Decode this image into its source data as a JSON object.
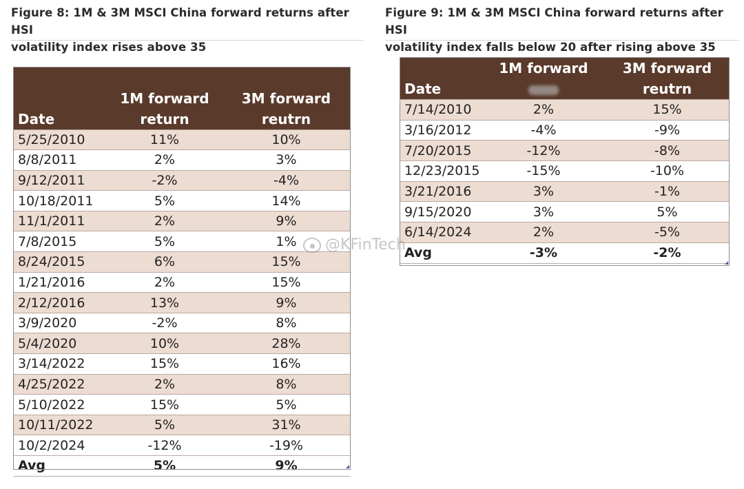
{
  "figure8": {
    "title_line1": "Figure 8: 1M & 3M MSCI China forward returns after HSI",
    "title_line2": "volatility index rises above 35",
    "headers": {
      "date": "Date",
      "col1_line1": "1M forward",
      "col1_line2": "return",
      "col2_line1": "3M forward",
      "col2_line2": "reutrn"
    },
    "rows": [
      {
        "date": "5/25/2010",
        "m1": "11%",
        "m3": "10%"
      },
      {
        "date": "8/8/2011",
        "m1": "2%",
        "m3": "3%"
      },
      {
        "date": "9/12/2011",
        "m1": "-2%",
        "m3": "-4%"
      },
      {
        "date": "10/18/2011",
        "m1": "5%",
        "m3": "14%"
      },
      {
        "date": "11/1/2011",
        "m1": "2%",
        "m3": "9%"
      },
      {
        "date": "7/8/2015",
        "m1": "5%",
        "m3": "1%"
      },
      {
        "date": "8/24/2015",
        "m1": "6%",
        "m3": "15%"
      },
      {
        "date": "1/21/2016",
        "m1": "2%",
        "m3": "15%"
      },
      {
        "date": "2/12/2016",
        "m1": "13%",
        "m3": "9%"
      },
      {
        "date": "3/9/2020",
        "m1": "-2%",
        "m3": "8%"
      },
      {
        "date": "5/4/2020",
        "m1": "10%",
        "m3": "28%"
      },
      {
        "date": "3/14/2022",
        "m1": "15%",
        "m3": "16%"
      },
      {
        "date": "4/25/2022",
        "m1": "2%",
        "m3": "8%"
      },
      {
        "date": "5/10/2022",
        "m1": "15%",
        "m3": "5%"
      },
      {
        "date": "10/11/2022",
        "m1": "5%",
        "m3": "31%"
      },
      {
        "date": "10/2/2024",
        "m1": "-12%",
        "m3": "-19%"
      }
    ],
    "avg": {
      "label": "Avg",
      "m1": "5%",
      "m3": "9%"
    }
  },
  "figure9": {
    "title_line1": "Figure 9: 1M & 3M MSCI China forward returns after HSI",
    "title_line2": "volatility index falls below 20 after rising above 35",
    "headers": {
      "date": "Date",
      "col1_line1": "1M forward",
      "col1_line2": "",
      "col2_line1": "3M forward",
      "col2_line2": "reutrn"
    },
    "rows": [
      {
        "date": "7/14/2010",
        "m1": "2%",
        "m3": "15%"
      },
      {
        "date": "3/16/2012",
        "m1": "-4%",
        "m3": "-9%"
      },
      {
        "date": "7/20/2015",
        "m1": "-12%",
        "m3": "-8%"
      },
      {
        "date": "12/23/2015",
        "m1": "-15%",
        "m3": "-10%"
      },
      {
        "date": "3/21/2016",
        "m1": "3%",
        "m3": "-1%"
      },
      {
        "date": "9/15/2020",
        "m1": "3%",
        "m3": "5%"
      },
      {
        "date": "6/14/2024",
        "m1": "2%",
        "m3": "-5%"
      }
    ],
    "avg": {
      "label": "Avg",
      "m1": "-3%",
      "m3": "-2%"
    }
  },
  "watermark": {
    "text": "@KFinTech",
    "icon": "weibo-icon"
  }
}
